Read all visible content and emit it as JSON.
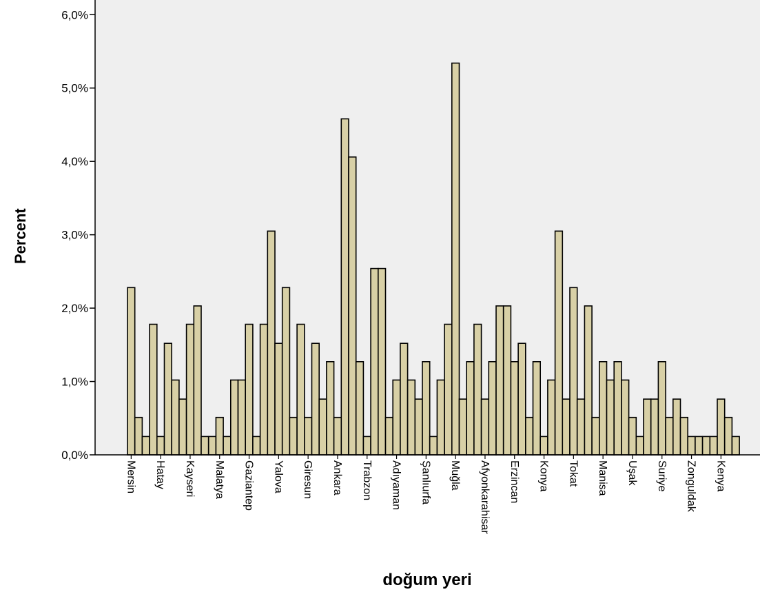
{
  "chart_data": {
    "type": "bar",
    "title": "",
    "xlabel": "doğum yeri",
    "ylabel": "Percent",
    "ylim": [
      0,
      6.2
    ],
    "y_ticks": [
      "0,0%",
      "1,0%",
      "2,0%",
      "3,0%",
      "4,0%",
      "5,0%",
      "6,0%"
    ],
    "y_tick_values": [
      0,
      1,
      2,
      3,
      4,
      5,
      6
    ],
    "grid": false,
    "values": [
      2.28,
      0.51,
      0.25,
      1.78,
      0.25,
      1.52,
      1.02,
      0.76,
      1.78,
      2.03,
      0.25,
      0.25,
      0.51,
      0.25,
      1.02,
      1.02,
      1.78,
      0.25,
      1.78,
      3.05,
      1.52,
      2.28,
      0.51,
      1.78,
      0.51,
      1.52,
      0.76,
      1.27,
      0.51,
      4.58,
      4.06,
      1.27,
      0.25,
      2.54,
      2.54,
      0.51,
      1.02,
      1.52,
      1.02,
      0.76,
      1.27,
      0.25,
      1.02,
      1.78,
      5.34,
      0.76,
      1.27,
      1.78,
      0.76,
      1.27,
      2.03,
      2.03,
      1.27,
      1.52,
      0.51,
      1.27,
      0.25,
      1.02,
      3.05,
      0.76,
      2.28,
      0.76,
      2.03,
      0.51,
      1.27,
      1.02,
      1.27,
      1.02,
      0.51,
      0.25,
      0.76,
      0.76,
      1.27,
      0.51,
      0.76,
      0.51,
      0.25,
      0.25,
      0.25,
      0.25,
      0.76,
      0.51,
      0.25
    ],
    "labeled_categories": [
      {
        "index": 0,
        "label": "Mersin"
      },
      {
        "index": 4,
        "label": "Hatay"
      },
      {
        "index": 8,
        "label": "Kayseri"
      },
      {
        "index": 12,
        "label": "Malatya"
      },
      {
        "index": 16,
        "label": "Gaziantep"
      },
      {
        "index": 20,
        "label": "Yalova"
      },
      {
        "index": 24,
        "label": "Giresun"
      },
      {
        "index": 28,
        "label": "Ankara"
      },
      {
        "index": 32,
        "label": "Trabzon"
      },
      {
        "index": 36,
        "label": "Adıyaman"
      },
      {
        "index": 40,
        "label": "Şanlıurfa"
      },
      {
        "index": 44,
        "label": "Muğla"
      },
      {
        "index": 48,
        "label": "Afyonkarahisar"
      },
      {
        "index": 52,
        "label": "Erzincan"
      },
      {
        "index": 56,
        "label": "Konya"
      },
      {
        "index": 60,
        "label": "Tokat"
      },
      {
        "index": 64,
        "label": "Manisa"
      },
      {
        "index": 68,
        "label": "Uşak"
      },
      {
        "index": 72,
        "label": "Suriye"
      },
      {
        "index": 76,
        "label": "Zonguldak"
      },
      {
        "index": 80,
        "label": "Kenya"
      }
    ],
    "colors": {
      "plot_bg": "#efefef",
      "bar_fill": "#d8d0a6",
      "bar_stroke": "#000000"
    }
  }
}
